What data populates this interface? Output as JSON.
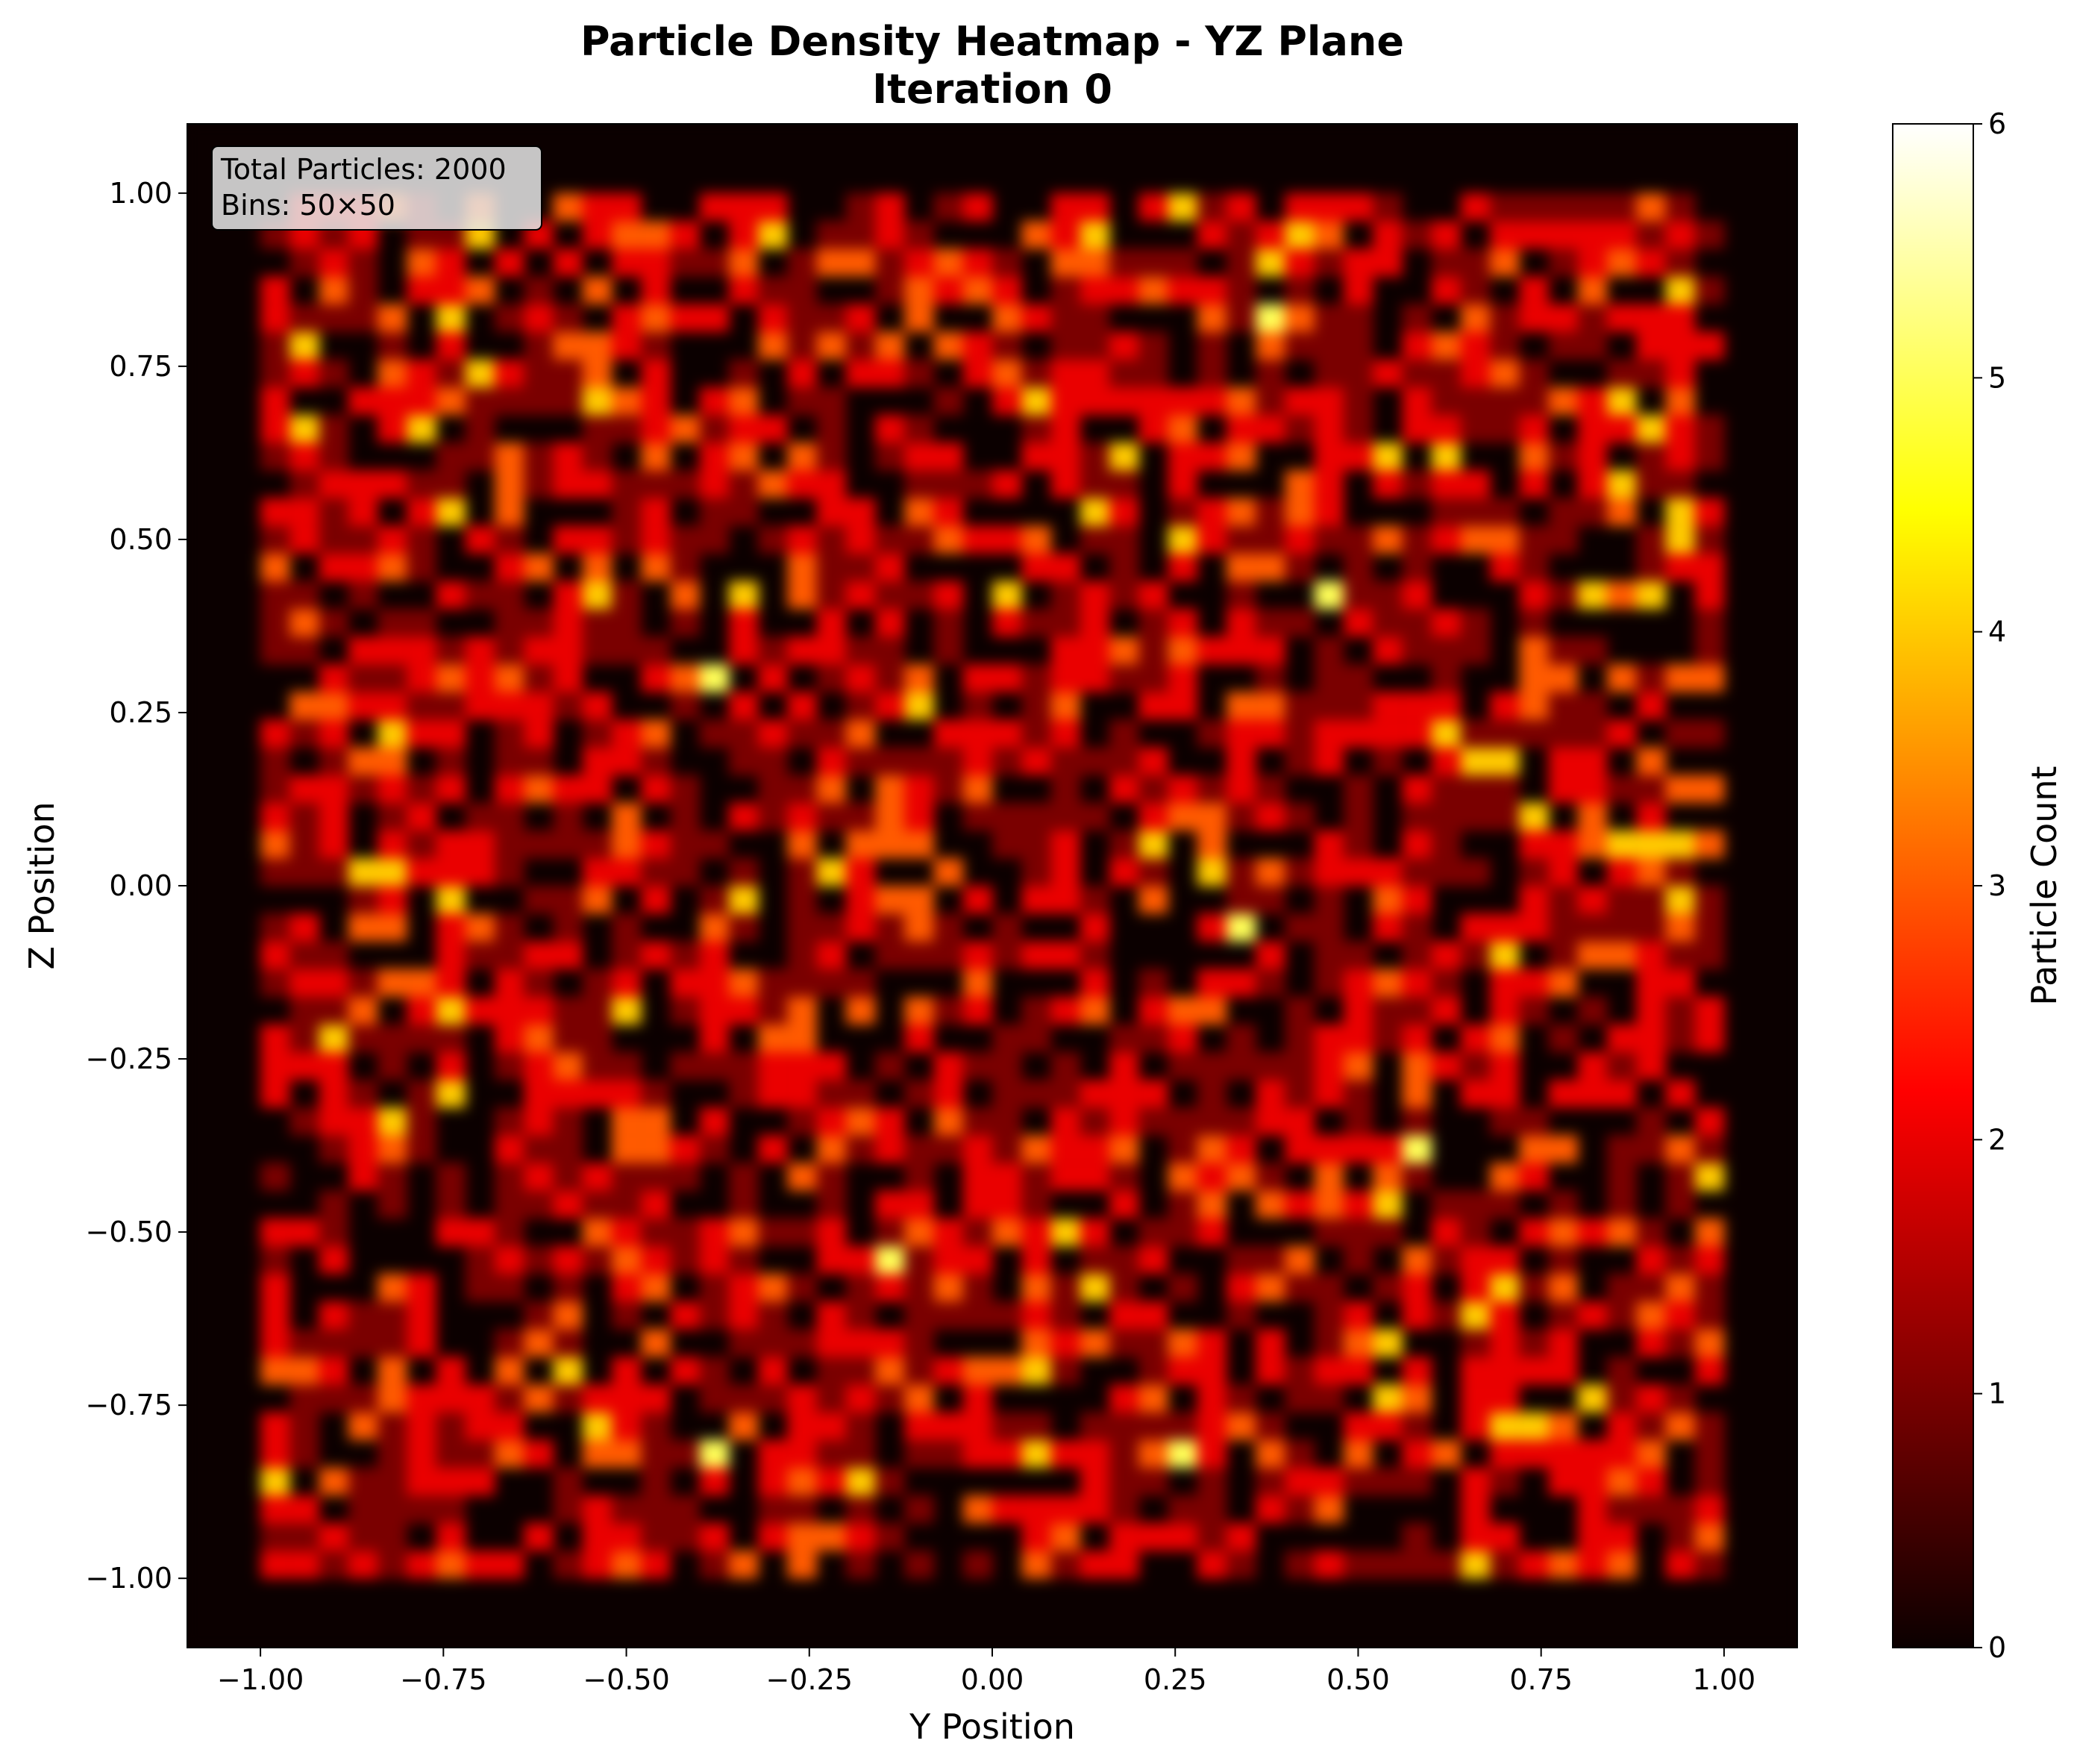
{
  "chart_data": {
    "type": "heatmap",
    "title": "Particle Density Heatmap - YZ Plane",
    "subtitle": "Iteration 0",
    "xlabel": "Y Position",
    "ylabel": "Z Position",
    "xlim": [
      -1.1,
      1.1
    ],
    "ylim": [
      -1.1,
      1.1
    ],
    "x_ticks": [
      -1.0,
      -0.75,
      -0.5,
      -0.25,
      0.0,
      0.25,
      0.5,
      0.75,
      1.0
    ],
    "x_tick_labels": [
      "−1.00",
      "−0.75",
      "−0.50",
      "−0.25",
      "0.00",
      "0.25",
      "0.50",
      "0.75",
      "1.00"
    ],
    "y_ticks": [
      -1.0,
      -0.75,
      -0.5,
      -0.25,
      0.0,
      0.25,
      0.5,
      0.75,
      1.0
    ],
    "y_tick_labels": [
      "−1.00",
      "−0.75",
      "−0.50",
      "−0.25",
      "0.00",
      "0.25",
      "0.50",
      "0.75",
      "1.00"
    ],
    "colorbar": {
      "label": "Particle Count",
      "range": [
        0,
        6
      ],
      "ticks": [
        0,
        1,
        2,
        3,
        4,
        5,
        6
      ],
      "tick_labels": [
        "0",
        "1",
        "2",
        "3",
        "4",
        "5",
        "6"
      ],
      "colormap": "hot"
    },
    "data_extent": [
      -1.0,
      1.0,
      -1.0,
      1.0
    ],
    "bins": [
      50,
      50
    ],
    "total_particles": 2000,
    "grid": false,
    "hotspots": [
      {
        "y": -0.38,
        "z": 0.28,
        "count": 5
      },
      {
        "y": -0.12,
        "z": 0.24,
        "count": 4
      },
      {
        "y": 0.33,
        "z": -0.06,
        "count": 5
      },
      {
        "y": 0.38,
        "z": 0.82,
        "count": 5
      },
      {
        "y": 0.46,
        "z": 0.42,
        "count": 5
      },
      {
        "y": 0.59,
        "z": -0.37,
        "count": 5
      },
      {
        "y": 0.25,
        "z": -0.81,
        "count": 5
      },
      {
        "y": -0.16,
        "z": -0.54,
        "count": 5
      },
      {
        "y": -0.37,
        "z": -0.81,
        "count": 5
      },
      {
        "y": -0.2,
        "z": -0.86,
        "count": 4
      },
      {
        "y": -0.94,
        "z": 0.64,
        "count": 4
      },
      {
        "y": 0.86,
        "z": 0.68,
        "count": 4
      },
      {
        "y": 0.28,
        "z": 0.02,
        "count": 4
      },
      {
        "y": -0.24,
        "z": 0.02,
        "count": 4
      },
      {
        "y": 0.68,
        "z": -0.56,
        "count": 4
      },
      {
        "y": -0.72,
        "z": 0.74,
        "count": 4
      },
      {
        "y": -0.68,
        "z": 0.95,
        "count": 4
      },
      {
        "y": 0.94,
        "z": 0.5,
        "count": 4
      },
      {
        "y": 0.63,
        "z": 0.6,
        "count": 4
      },
      {
        "y": -0.33,
        "z": 0.42,
        "count": 4
      },
      {
        "y": -0.81,
        "z": 0.2,
        "count": 4
      },
      {
        "y": 0.9,
        "z": 0.07,
        "count": 4
      }
    ]
  },
  "annotation": {
    "line1": "Total Particles: 2000",
    "line2": "Bins: 50×50"
  }
}
